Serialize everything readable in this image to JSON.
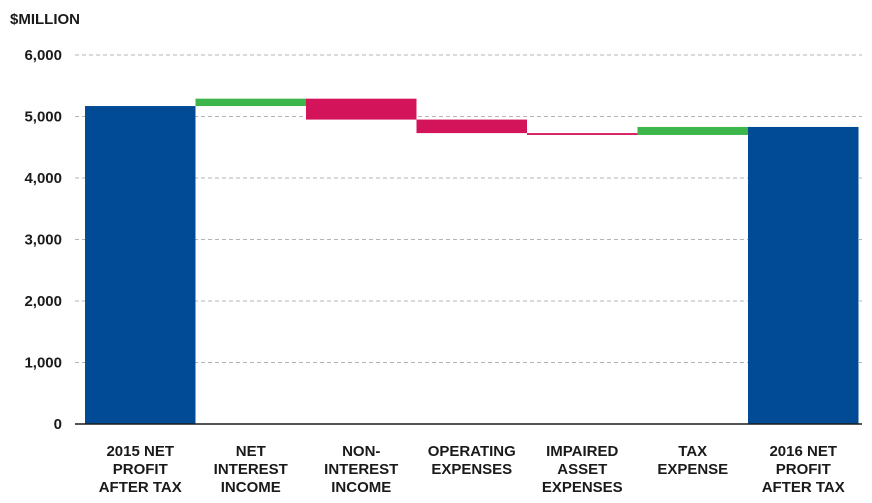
{
  "chart_data": {
    "type": "bar",
    "subtype": "waterfall",
    "ylabel": "$MILLION",
    "ylim": [
      0,
      6000
    ],
    "yticks": [
      0,
      1000,
      2000,
      3000,
      4000,
      5000,
      6000
    ],
    "ytick_labels": [
      "0",
      "1,000",
      "2,000",
      "3,000",
      "4,000",
      "5,000",
      "6,000"
    ],
    "grid": true,
    "categories": [
      [
        "2015 NET",
        "PROFIT",
        "AFTER TAX"
      ],
      [
        "NET",
        "INTEREST",
        "INCOME"
      ],
      [
        "NON-",
        "INTEREST",
        "INCOME"
      ],
      [
        "OPERATING",
        "EXPENSES"
      ],
      [
        "IMPAIRED",
        "ASSET",
        "EXPENSES"
      ],
      [
        "TAX",
        "EXPENSE"
      ],
      [
        "2016 NET",
        "PROFIT",
        "AFTER TAX"
      ]
    ],
    "bars": [
      {
        "kind": "total",
        "start": 0,
        "end": 5170
      },
      {
        "kind": "increase",
        "start": 5170,
        "end": 5290
      },
      {
        "kind": "decrease",
        "start": 5290,
        "end": 4950
      },
      {
        "kind": "decrease",
        "start": 4950,
        "end": 4730
      },
      {
        "kind": "decrease",
        "start": 4730,
        "end": 4700
      },
      {
        "kind": "increase",
        "start": 4700,
        "end": 4830
      },
      {
        "kind": "total",
        "start": 0,
        "end": 4830
      }
    ],
    "colors": {
      "total": "#004a96",
      "increase": "#3cb54a",
      "decrease": "#d4145a"
    }
  }
}
